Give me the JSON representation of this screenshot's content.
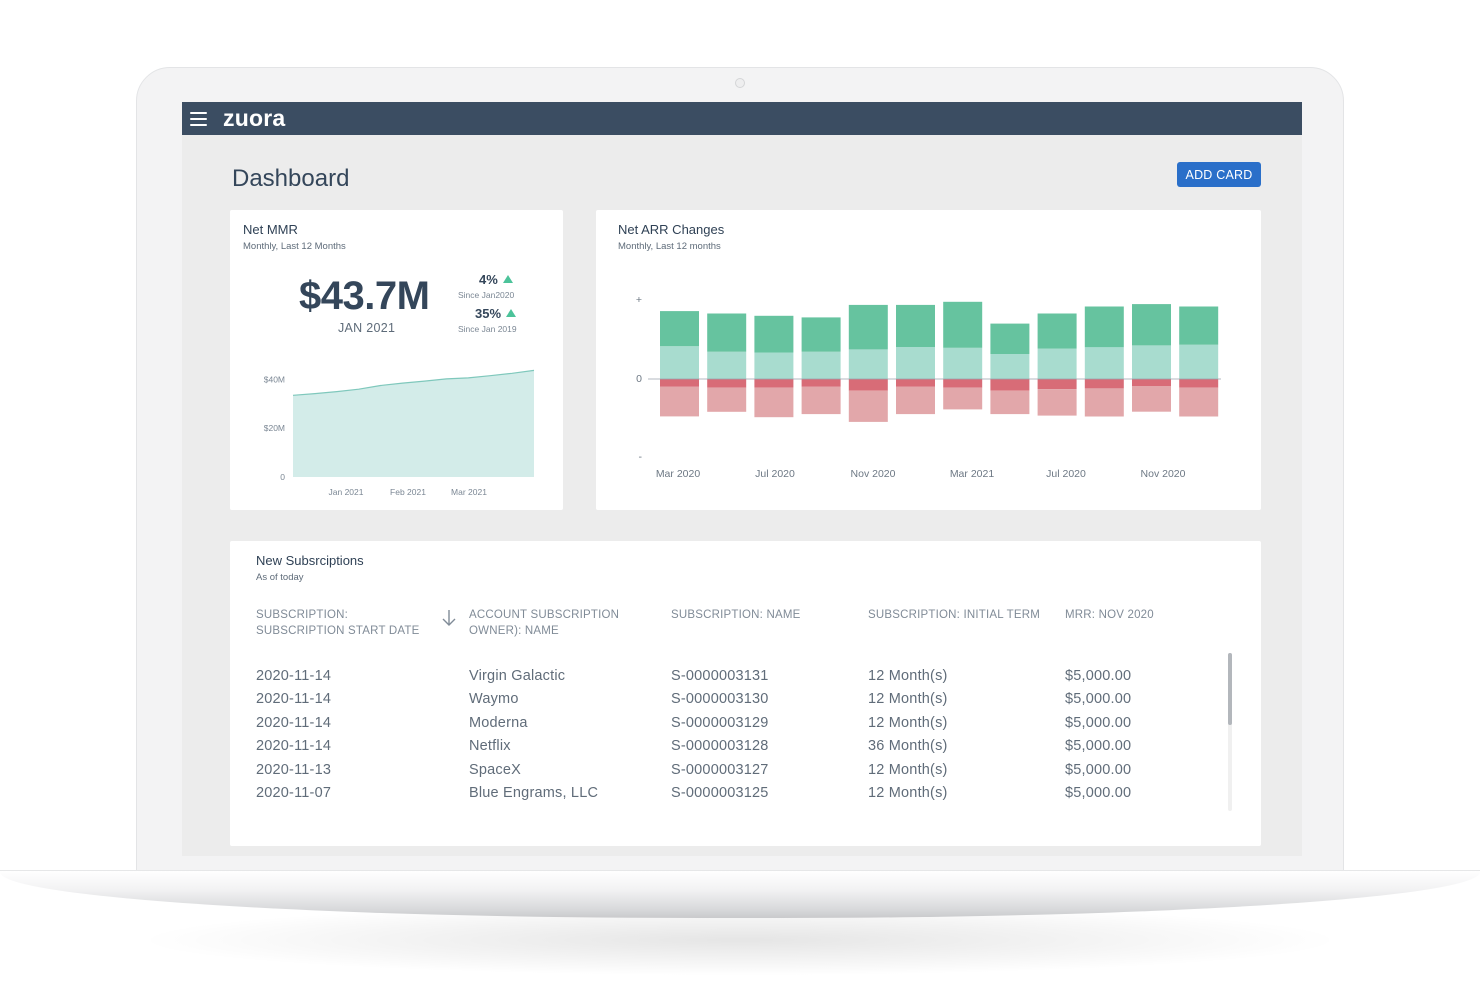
{
  "app": {
    "logo": "zuora"
  },
  "header": {
    "title": "Dashboard",
    "add_card_label": "ADD CARD"
  },
  "net_mmr": {
    "title": "Net MMR",
    "subtitle": "Monthly, Last 12 Months",
    "value": "$43.7M",
    "date": "JAN 2021",
    "delta1": {
      "value": "4%",
      "since": "Since Jan2020"
    },
    "delta2": {
      "value": "35%",
      "since": "Since Jan 2019"
    }
  },
  "net_arr": {
    "title": "Net ARR Changes",
    "subtitle": "Monthly, Last 12 months"
  },
  "chart_data": [
    {
      "type": "area",
      "y_tick_labels": [
        "$40M",
        "$20M",
        "0"
      ],
      "x_tick_labels": [
        "Jan 2021",
        "Feb 2021",
        "Mar 2021"
      ],
      "ylim": [
        0,
        50
      ],
      "values": [
        33.5,
        34.2,
        35.0,
        36.0,
        37.5,
        38.5,
        39.3,
        40.2,
        40.6,
        41.5,
        42.5,
        43.7
      ],
      "colors": {
        "fill": "#d3ece9",
        "line": "#7fc8bc"
      },
      "grid": false
    },
    {
      "type": "bar",
      "stacked": true,
      "y_tick_labels": [
        "+",
        "0",
        "-"
      ],
      "ylim": [
        -100,
        100
      ],
      "x_tick_labels": [
        "Mar 2020",
        "Jul 2020",
        "Nov 2020",
        "Mar 2021",
        "Jul 2020",
        "Nov 2020"
      ],
      "series": [
        {
          "values": [
            42,
            35,
            34,
            35,
            38,
            41,
            40,
            32,
            39,
            41,
            43,
            44
          ],
          "color": "#a8dccf"
        },
        {
          "values": [
            45,
            49,
            47,
            44,
            57,
            54,
            59,
            39,
            45,
            52,
            53,
            49
          ],
          "color": "#66c39f"
        },
        {
          "values": [
            -10,
            -11,
            -11,
            -10,
            -15,
            -10,
            -11,
            -15,
            -13,
            -12,
            -9,
            -11
          ],
          "color": "#d86c77"
        },
        {
          "values": [
            -38,
            -31,
            -38,
            -35,
            -40,
            -35,
            -28,
            -30,
            -34,
            -36,
            -33,
            -37
          ],
          "color": "#e2a7aa"
        }
      ],
      "grid": false
    }
  ],
  "subscriptions": {
    "title": "New Subsrciptions",
    "subtitle": "As of today",
    "columns": [
      "SUBSCRIPTION: SUBSCRIPTION START DATE",
      "ACCOUNT SUBSCRIPTION OWNER): NAME",
      "SUBSCRIPTION: NAME",
      "SUBSCRIPTION: INITIAL TERM",
      "MRR: NOV 2020"
    ],
    "rows": [
      [
        "2020-11-14",
        "Virgin Galactic",
        "S-0000003131",
        "12 Month(s)",
        "$5,000.00"
      ],
      [
        "2020-11-14",
        "Waymo",
        "S-0000003130",
        "12 Month(s)",
        "$5,000.00"
      ],
      [
        "2020-11-14",
        "Moderna",
        "S-0000003129",
        "12 Month(s)",
        "$5,000.00"
      ],
      [
        "2020-11-14",
        "Netflix",
        "S-0000003128",
        "36 Month(s)",
        "$5,000.00"
      ],
      [
        "2020-11-13",
        "SpaceX",
        "S-0000003127",
        "12 Month(s)",
        "$5,000.00"
      ],
      [
        "2020-11-07",
        "Blue Engrams, LLC",
        "S-0000003125",
        "12 Month(s)",
        "$5,000.00"
      ]
    ]
  }
}
